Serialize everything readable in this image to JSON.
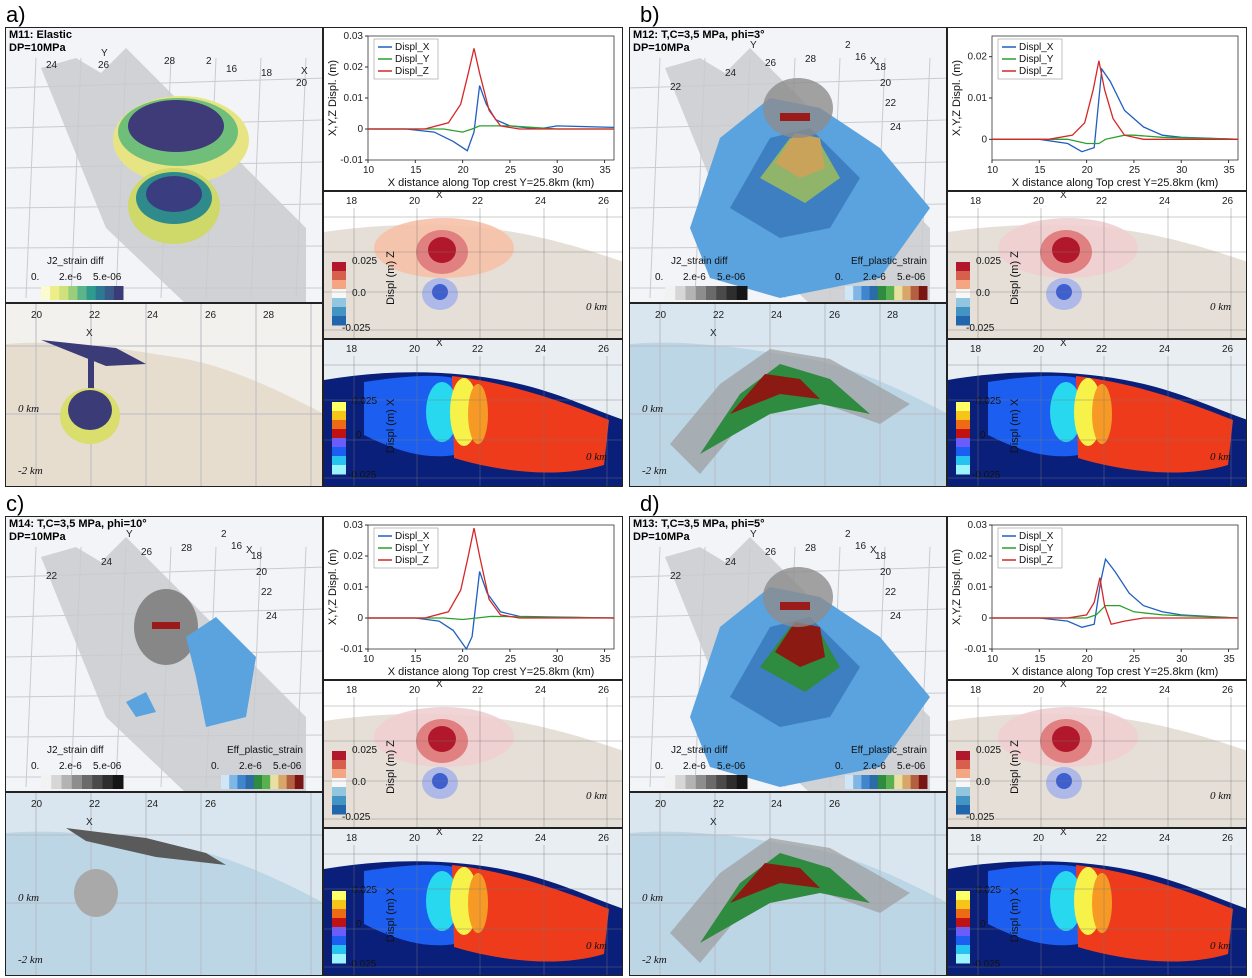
{
  "panels": [
    {
      "letter": "a)",
      "title1": "M11: Elastic",
      "title2": "DP=10MPa",
      "scheme": "elastic",
      "has_plastic": false,
      "cb_j2": {
        "title": "J2_strain diff",
        "ticks": [
          "0.",
          "2.e-6",
          "5.e-06"
        ]
      },
      "cb_plastic": null,
      "axis3d": {
        "y": "Y",
        "x": "X",
        "ticks": [
          "24",
          "26",
          "28",
          "2",
          "16",
          "18",
          "20"
        ]
      },
      "lower3d": {
        "x": "X",
        "ticks": [
          "20",
          "22",
          "24",
          "26",
          "28"
        ],
        "km": [
          "0 km",
          "-2 km"
        ]
      },
      "sec_z": {
        "x": "X",
        "ticks": [
          "18",
          "20",
          "22",
          "24",
          "26"
        ],
        "cb_title": "Displ (m) Z",
        "cb_ticks": [
          "0.025",
          "0.0",
          "-0.025"
        ],
        "km": "0 km"
      },
      "sec_x": {
        "x": "X",
        "ticks": [
          "18",
          "20",
          "22",
          "24",
          "26"
        ],
        "cb_title": "Displ (m) X",
        "cb_ticks": [
          "0.025",
          "0",
          "-0.025"
        ],
        "km": "0 km"
      }
    },
    {
      "letter": "b)",
      "title1": "M12: T,C=3,5 MPa, phi=3°",
      "title2": "DP=10MPa",
      "scheme": "plastic",
      "has_plastic": true,
      "cb_j2": {
        "title": "J2_strain diff",
        "ticks": [
          "0.",
          "2.e-6",
          "5.e-06"
        ]
      },
      "cb_plastic": {
        "title": "Eff_plastic_strain",
        "ticks": [
          "0.",
          "2.e-6",
          "5.e-06"
        ]
      },
      "axis3d": {
        "y": "Y",
        "x": "X",
        "ticks": [
          "22",
          "24",
          "26",
          "28",
          "2",
          "16",
          "18",
          "20",
          "22",
          "24"
        ]
      },
      "lower3d": {
        "x": "X",
        "ticks": [
          "20",
          "22",
          "24",
          "26",
          "28"
        ],
        "km": [
          "0 km",
          "-2 km"
        ]
      },
      "sec_z": {
        "x": "X",
        "ticks": [
          "18",
          "20",
          "22",
          "24",
          "26"
        ],
        "cb_title": "Displ (m) Z",
        "cb_ticks": [
          "0.025",
          "0.0",
          "-0.025"
        ],
        "km": "0 km"
      },
      "sec_x": {
        "x": "X",
        "ticks": [
          "18",
          "20",
          "22",
          "24",
          "26"
        ],
        "cb_title": "Displ (m) X",
        "cb_ticks": [
          "0.025",
          "0",
          "-0.025"
        ],
        "km": "0 km"
      }
    },
    {
      "letter": "c)",
      "title1": "M14: T,C=3,5 MPa, phi=10°",
      "title2": "DP=10MPa",
      "scheme": "grey",
      "has_plastic": true,
      "cb_j2": {
        "title": "J2_strain diff",
        "ticks": [
          "0.",
          "2.e-6",
          "5.e-06"
        ]
      },
      "cb_plastic": {
        "title": "Eff_plastic_strain",
        "ticks": [
          "0.",
          "2.e-6",
          "5.e-06"
        ]
      },
      "axis3d": {
        "y": "Y",
        "x": "X",
        "ticks": [
          "22",
          "24",
          "26",
          "28",
          "2",
          "16",
          "18",
          "20",
          "22",
          "24"
        ]
      },
      "lower3d": {
        "x": "X",
        "ticks": [
          "20",
          "22",
          "24",
          "26"
        ],
        "km": [
          "0 km",
          "-2 km"
        ]
      },
      "sec_z": {
        "x": "X",
        "ticks": [
          "18",
          "20",
          "22",
          "24",
          "26"
        ],
        "cb_title": "Displ (m) Z",
        "cb_ticks": [
          "0.025",
          "0.0",
          "-0.025"
        ],
        "km": "0 km"
      },
      "sec_x": {
        "x": "X",
        "ticks": [
          "18",
          "20",
          "22",
          "24",
          "26"
        ],
        "cb_title": "Displ (m) X",
        "cb_ticks": [
          "0.025",
          "0",
          "-0.025"
        ],
        "km": "0 km"
      }
    },
    {
      "letter": "d)",
      "title1": "M13: T,C=3,5 MPa, phi=5°",
      "title2": "DP=10MPa",
      "scheme": "plastic2",
      "has_plastic": true,
      "cb_j2": {
        "title": "J2_strain diff",
        "ticks": [
          "0.",
          "2.e-6",
          "5.e-06"
        ]
      },
      "cb_plastic": {
        "title": "Eff_plastic_strain",
        "ticks": [
          "0.",
          "2.e-6",
          "5.e-06"
        ]
      },
      "axis3d": {
        "y": "Y",
        "x": "X",
        "ticks": [
          "22",
          "24",
          "26",
          "28",
          "2",
          "16",
          "18",
          "20",
          "22",
          "24"
        ]
      },
      "lower3d": {
        "x": "X",
        "ticks": [
          "20",
          "22",
          "24",
          "26"
        ],
        "km": [
          "0 km",
          "-2 km"
        ]
      },
      "sec_z": {
        "x": "X",
        "ticks": [
          "18",
          "20",
          "22",
          "24",
          "26"
        ],
        "cb_title": "Displ (m) Z",
        "cb_ticks": [
          "0.025",
          "0.0",
          "-0.025"
        ],
        "km": "0 km"
      },
      "sec_x": {
        "x": "X",
        "ticks": [
          "18",
          "20",
          "22",
          "24",
          "26"
        ],
        "cb_title": "Displ (m) X",
        "cb_ticks": [
          "0.025",
          "0",
          "-0.025"
        ],
        "km": "0 km"
      }
    }
  ],
  "chart_data": [
    {
      "type": "line",
      "panel": "a)",
      "xlabel": "X distance along Top crest Y=25.8km (km)",
      "ylabel": "X,Y,Z Displ. (m)",
      "xlim": [
        10,
        36
      ],
      "ylim": [
        -0.01,
        0.03
      ],
      "xticks": [
        10,
        15,
        20,
        25,
        30,
        35
      ],
      "yticks": [
        -0.01,
        0,
        0.01,
        0.02,
        0.03
      ],
      "ytick_labels": [
        "-0.01",
        "0",
        "0.01",
        "0.02",
        "0.03"
      ],
      "series": [
        {
          "name": "Displ_X",
          "color": "#1f5fbf",
          "points": [
            [
              10,
              0
            ],
            [
              14,
              0
            ],
            [
              17,
              -0.001
            ],
            [
              19,
              -0.004
            ],
            [
              20.5,
              -0.007
            ],
            [
              21.2,
              -0.001
            ],
            [
              21.8,
              0.014
            ],
            [
              22.5,
              0.008
            ],
            [
              23.5,
              0.003
            ],
            [
              25,
              0.001
            ],
            [
              28,
              0
            ],
            [
              30,
              0.001
            ],
            [
              36,
              0.0005
            ]
          ]
        },
        {
          "name": "Displ_Y",
          "color": "#2ca02c",
          "points": [
            [
              10,
              0
            ],
            [
              18,
              0
            ],
            [
              20,
              -0.001
            ],
            [
              21,
              0
            ],
            [
              21.8,
              0.001
            ],
            [
              23,
              0.001
            ],
            [
              25,
              0.001
            ],
            [
              30,
              0
            ],
            [
              36,
              0
            ]
          ]
        },
        {
          "name": "Displ_Z",
          "color": "#d62728",
          "points": [
            [
              10,
              0
            ],
            [
              16,
              0
            ],
            [
              18.5,
              0.002
            ],
            [
              19.8,
              0.008
            ],
            [
              20.6,
              0.018
            ],
            [
              21.2,
              0.026
            ],
            [
              21.8,
              0.018
            ],
            [
              22.8,
              0.006
            ],
            [
              24,
              0.001
            ],
            [
              26,
              0
            ],
            [
              36,
              0
            ]
          ]
        }
      ]
    },
    {
      "type": "line",
      "panel": "b)",
      "xlabel": "X distance along Top crest Y=25.8km (km)",
      "ylabel": "X,Y,Z Displ. (m)",
      "xlim": [
        10,
        36
      ],
      "ylim": [
        -0.005,
        0.025
      ],
      "xticks": [
        10,
        15,
        20,
        25,
        30,
        35
      ],
      "yticks": [
        0,
        0.01,
        0.02
      ],
      "ytick_labels": [
        "0",
        "0.01",
        "0.02"
      ],
      "series": [
        {
          "name": "Displ_X",
          "color": "#1f5fbf",
          "points": [
            [
              10,
              0
            ],
            [
              15,
              0
            ],
            [
              18,
              -0.001
            ],
            [
              19.5,
              -0.003
            ],
            [
              20.8,
              -0.002
            ],
            [
              21.6,
              0.017
            ],
            [
              22.5,
              0.014
            ],
            [
              24,
              0.007
            ],
            [
              26,
              0.003
            ],
            [
              28,
              0.001
            ],
            [
              30,
              0.0005
            ],
            [
              36,
              0
            ]
          ]
        },
        {
          "name": "Displ_Y",
          "color": "#2ca02c",
          "points": [
            [
              10,
              0
            ],
            [
              18,
              0
            ],
            [
              20,
              -0.001
            ],
            [
              21.3,
              -0.001
            ],
            [
              22,
              0
            ],
            [
              24,
              0.001
            ],
            [
              25,
              0.001
            ],
            [
              28,
              0.0005
            ],
            [
              36,
              0
            ]
          ]
        },
        {
          "name": "Displ_Z",
          "color": "#d62728",
          "points": [
            [
              10,
              0
            ],
            [
              16,
              0
            ],
            [
              18.5,
              0.001
            ],
            [
              19.8,
              0.004
            ],
            [
              20.7,
              0.012
            ],
            [
              21.3,
              0.019
            ],
            [
              21.9,
              0.012
            ],
            [
              22.8,
              0.005
            ],
            [
              24,
              0.001
            ],
            [
              26,
              0
            ],
            [
              36,
              0
            ]
          ]
        }
      ]
    },
    {
      "type": "line",
      "panel": "c)",
      "xlabel": "X distance along Top crest Y=25.8km (km)",
      "ylabel": "X,Y,Z Displ. (m)",
      "xlim": [
        10,
        36
      ],
      "ylim": [
        -0.01,
        0.03
      ],
      "xticks": [
        10,
        15,
        20,
        25,
        30,
        35
      ],
      "yticks": [
        -0.01,
        0,
        0.01,
        0.02,
        0.03
      ],
      "ytick_labels": [
        "-0.01",
        "0",
        "0.01",
        "0.02",
        "0.03"
      ],
      "series": [
        {
          "name": "Displ_X",
          "color": "#1f5fbf",
          "points": [
            [
              10,
              0
            ],
            [
              15,
              0
            ],
            [
              17.5,
              -0.001
            ],
            [
              19,
              -0.004
            ],
            [
              20.4,
              -0.01
            ],
            [
              21,
              -0.006
            ],
            [
              21.8,
              0.015
            ],
            [
              22.6,
              0.008
            ],
            [
              24,
              0.002
            ],
            [
              26,
              0.0005
            ],
            [
              36,
              0
            ]
          ]
        },
        {
          "name": "Displ_Y",
          "color": "#2ca02c",
          "points": [
            [
              10,
              0
            ],
            [
              18,
              0
            ],
            [
              20,
              -0.0005
            ],
            [
              21.5,
              0
            ],
            [
              23,
              0.0005
            ],
            [
              36,
              0
            ]
          ]
        },
        {
          "name": "Displ_Z",
          "color": "#d62728",
          "points": [
            [
              10,
              0
            ],
            [
              16,
              0
            ],
            [
              18.5,
              0.002
            ],
            [
              19.8,
              0.009
            ],
            [
              20.6,
              0.02
            ],
            [
              21.2,
              0.029
            ],
            [
              21.8,
              0.02
            ],
            [
              22.8,
              0.006
            ],
            [
              24,
              0.001
            ],
            [
              26,
              0
            ],
            [
              36,
              0
            ]
          ]
        }
      ]
    },
    {
      "type": "line",
      "panel": "d)",
      "xlabel": "X distance along Top crest Y=25.8km (km)",
      "ylabel": "X,Y,Z Displ. (m)",
      "xlim": [
        10,
        36
      ],
      "ylim": [
        -0.01,
        0.03
      ],
      "xticks": [
        10,
        15,
        20,
        25,
        30,
        35
      ],
      "yticks": [
        -0.01,
        0,
        0.01,
        0.02,
        0.03
      ],
      "ytick_labels": [
        "-0.01",
        "0",
        "0.01",
        "0.02",
        "0.03"
      ],
      "series": [
        {
          "name": "Displ_X",
          "color": "#1f5fbf",
          "points": [
            [
              10,
              0
            ],
            [
              15,
              0
            ],
            [
              18,
              -0.001
            ],
            [
              19.5,
              -0.003
            ],
            [
              20.8,
              -0.002
            ],
            [
              21.5,
              0.012
            ],
            [
              22,
              0.019
            ],
            [
              23,
              0.015
            ],
            [
              24.5,
              0.008
            ],
            [
              26,
              0.004
            ],
            [
              28,
              0.002
            ],
            [
              30,
              0.001
            ],
            [
              36,
              0
            ]
          ]
        },
        {
          "name": "Displ_Y",
          "color": "#2ca02c",
          "points": [
            [
              10,
              0
            ],
            [
              18,
              0
            ],
            [
              20,
              0
            ],
            [
              21,
              0.001
            ],
            [
              22,
              0.004
            ],
            [
              23.5,
              0.004
            ],
            [
              25,
              0.002
            ],
            [
              28,
              0.001
            ],
            [
              36,
              0
            ]
          ]
        },
        {
          "name": "Displ_Z",
          "color": "#d62728",
          "points": [
            [
              10,
              0
            ],
            [
              18,
              0
            ],
            [
              20,
              0.001
            ],
            [
              20.8,
              0.005
            ],
            [
              21.4,
              0.013
            ],
            [
              21.9,
              0.004
            ],
            [
              22.6,
              -0.002
            ],
            [
              24,
              -0.001
            ],
            [
              26,
              0
            ],
            [
              36,
              0
            ]
          ]
        }
      ]
    }
  ]
}
